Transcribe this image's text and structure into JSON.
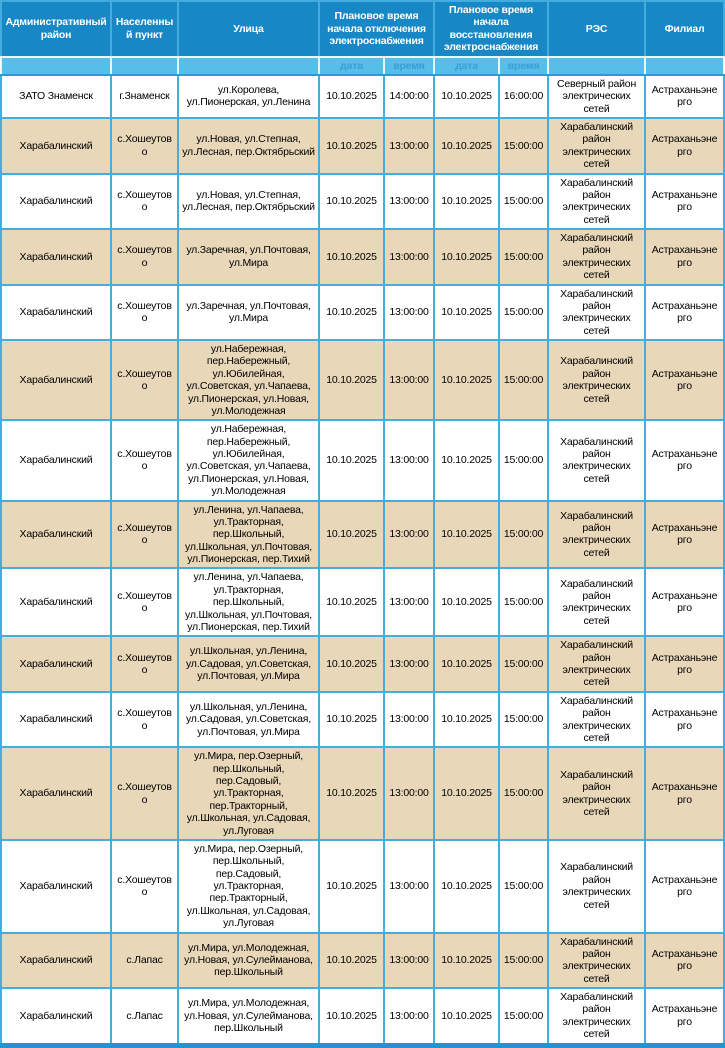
{
  "colors": {
    "header_bg": "#1787c5",
    "subheader_bg": "#55bfe9",
    "subheader_text": "#3a9fd3",
    "grid_border": "#43ade0",
    "row_alt_bg": "#e9d7b9",
    "bottom_bar": "#2095cf",
    "body_text": "#000000",
    "header_text": "#ffffff"
  },
  "table": {
    "header": {
      "admin_district": "Административный район",
      "settlement": "Населенный пункт",
      "street": "Улица",
      "outage_group": "Плановое время начала отключения электроснабжения",
      "restore_group": "Плановое время начала восстановления электроснабжения",
      "res": "РЭС",
      "branch": "Филиал",
      "sub_date_outage": "дата",
      "sub_time_outage": "время",
      "sub_date_restore": "дата",
      "sub_time_restore": "время"
    },
    "rows": [
      [
        "ЗАТО Знаменск",
        "г.Знаменск",
        "ул.Королева, ул.Пионерская, ул.Ленина",
        "10.10.2025",
        "14:00:00",
        "10.10.2025",
        "16:00:00",
        "Северный район электрических сетей",
        "Астраханьэнерго"
      ],
      [
        "Харабалинский",
        "с.Хошеутово",
        "ул.Новая, ул.Степная, ул.Лесная, пер.Октябрьский",
        "10.10.2025",
        "13:00:00",
        "10.10.2025",
        "15:00:00",
        "Харабалинский район электрических сетей",
        "Астраханьэнерго"
      ],
      [
        "Харабалинский",
        "с.Хошеутово",
        "ул.Новая, ул.Степная, ул.Лесная, пер.Октябрьский",
        "10.10.2025",
        "13:00:00",
        "10.10.2025",
        "15:00:00",
        "Харабалинский район электрических сетей",
        "Астраханьэнерго"
      ],
      [
        "Харабалинский",
        "с.Хошеутово",
        "ул.Заречная, ул.Почтовая, ул.Мира",
        "10.10.2025",
        "13:00:00",
        "10.10.2025",
        "15:00:00",
        "Харабалинский район электрических сетей",
        "Астраханьэнерго"
      ],
      [
        "Харабалинский",
        "с.Хошеутово",
        "ул.Заречная, ул.Почтовая, ул.Мира",
        "10.10.2025",
        "13:00:00",
        "10.10.2025",
        "15:00:00",
        "Харабалинский район электрических сетей",
        "Астраханьэнерго"
      ],
      [
        "Харабалинский",
        "с.Хошеутово",
        "ул.Набережная, пер.Набережный, ул.Юбилейная, ул.Советская, ул.Чапаева, ул.Пионерская, ул.Новая, ул.Молодежная",
        "10.10.2025",
        "13:00:00",
        "10.10.2025",
        "15:00:00",
        "Харабалинский район электрических сетей",
        "Астраханьэнерго"
      ],
      [
        "Харабалинский",
        "с.Хошеутово",
        "ул.Набережная, пер.Набережный, ул.Юбилейная, ул.Советская, ул.Чапаева, ул.Пионерская, ул.Новая, ул.Молодежная",
        "10.10.2025",
        "13:00:00",
        "10.10.2025",
        "15:00:00",
        "Харабалинский район электрических сетей",
        "Астраханьэнерго"
      ],
      [
        "Харабалинский",
        "с.Хошеутово",
        "ул.Ленина, ул.Чапаева, ул.Тракторная, пер.Школьный, ул.Школьная, ул.Почтовая, ул.Пионерская, пер.Тихий",
        "10.10.2025",
        "13:00:00",
        "10.10.2025",
        "15:00:00",
        "Харабалинский район электрических сетей",
        "Астраханьэнерго"
      ],
      [
        "Харабалинский",
        "с.Хошеутово",
        "ул.Ленина, ул.Чапаева, ул.Тракторная, пер.Школьный, ул.Школьная, ул.Почтовая, ул.Пионерская, пер.Тихий",
        "10.10.2025",
        "13:00:00",
        "10.10.2025",
        "15:00:00",
        "Харабалинский район электрических сетей",
        "Астраханьэнерго"
      ],
      [
        "Харабалинский",
        "с.Хошеутово",
        "ул.Школьная, ул.Ленина, ул.Садовая, ул.Советская, ул.Почтовая, ул.Мира",
        "10.10.2025",
        "13:00:00",
        "10.10.2025",
        "15:00:00",
        "Харабалинский район электрических сетей",
        "Астраханьэнерго"
      ],
      [
        "Харабалинский",
        "с.Хошеутово",
        "ул.Школьная, ул.Ленина, ул.Садовая, ул.Советская, ул.Почтовая, ул.Мира",
        "10.10.2025",
        "13:00:00",
        "10.10.2025",
        "15:00:00",
        "Харабалинский район электрических сетей",
        "Астраханьэнерго"
      ],
      [
        "Харабалинский",
        "с.Хошеутово",
        "ул.Мира, пер.Озерный, пер.Школьный, пер.Садовый, ул.Тракторная, пер.Тракторный, ул.Школьная, ул.Садовая, ул.Луговая",
        "10.10.2025",
        "13:00:00",
        "10.10.2025",
        "15:00:00",
        "Харабалинский район электрических сетей",
        "Астраханьэнерго"
      ],
      [
        "Харабалинский",
        "с.Хошеутово",
        "ул.Мира, пер.Озерный, пер.Школьный, пер.Садовый, ул.Тракторная, пер.Тракторный, ул.Школьная, ул.Садовая, ул.Луговая",
        "10.10.2025",
        "13:00:00",
        "10.10.2025",
        "15:00:00",
        "Харабалинский район электрических сетей",
        "Астраханьэнерго"
      ],
      [
        "Харабалинский",
        "с.Лапас",
        "ул.Мира, ул.Молодежная, ул.Новая, ул.Сулейманова, пер.Школьный",
        "10.10.2025",
        "13:00:00",
        "10.10.2025",
        "15:00:00",
        "Харабалинский район электрических сетей",
        "Астраханьэнерго"
      ],
      [
        "Харабалинский",
        "с.Лапас",
        "ул.Мира, ул.Молодежная, ул.Новая, ул.Сулейманова, пер.Школьный",
        "10.10.2025",
        "13:00:00",
        "10.10.2025",
        "15:00:00",
        "Харабалинский район электрических сетей",
        "Астраханьэнерго"
      ]
    ]
  }
}
